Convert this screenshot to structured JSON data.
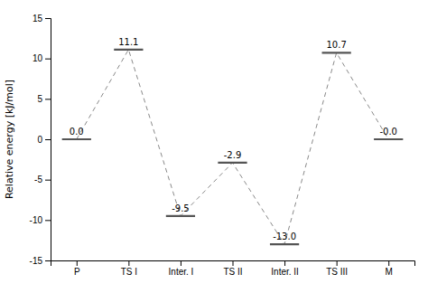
{
  "chart_data": {
    "type": "line",
    "categories": [
      "P",
      "TS I",
      "Inter. I",
      "TS II",
      "Inter. II",
      "TS III",
      "M"
    ],
    "values": [
      0.0,
      11.1,
      -9.5,
      -2.9,
      -13.0,
      10.7,
      -0.0
    ],
    "value_labels": [
      "0.0",
      "11.1",
      "-9.5",
      "-2.9",
      "-13.0",
      "10.7",
      "-0.0"
    ],
    "data_labels": true,
    "color": "#555555",
    "line_style": "dashed",
    "marker": "hline",
    "ylim": [
      -15,
      15
    ],
    "yticks": [
      -15,
      -10,
      -5,
      0,
      5,
      10,
      15
    ],
    "ylabel": "Relative energy [kJ/mol]",
    "grid": false
  }
}
